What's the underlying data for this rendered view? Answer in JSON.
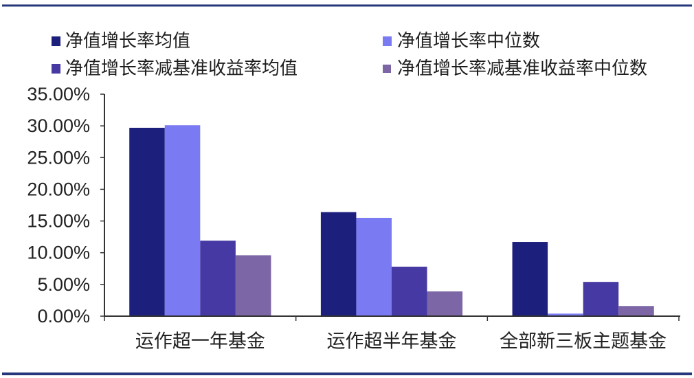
{
  "chart_data": {
    "type": "bar",
    "categories": [
      "运作超一年基金",
      "运作超半年基金",
      "全部新三板主题基金"
    ],
    "series": [
      {
        "name": "净值增长率均值",
        "values": [
          29.7,
          16.4,
          11.7
        ],
        "color": "#1d1f7c"
      },
      {
        "name": "净值增长率中位数",
        "values": [
          30.1,
          15.5,
          0.4
        ],
        "color": "#7a7af2"
      },
      {
        "name": "净值增长率减基准收益率均值",
        "values": [
          11.9,
          7.8,
          5.4
        ],
        "color": "#4639a3"
      },
      {
        "name": "净值增长率减基准收益率中位数",
        "values": [
          9.6,
          3.9,
          1.6
        ],
        "color": "#7d66a5"
      }
    ],
    "y_tick_labels": [
      "0.00%",
      "5.00%",
      "10.00%",
      "15.00%",
      "20.00%",
      "25.00%",
      "30.00%",
      "35.00%"
    ],
    "ylim": [
      0,
      35
    ],
    "legend_position": "top",
    "grid": false
  },
  "colors": {
    "frame_rule": "#26367a",
    "axis": "#333333"
  }
}
